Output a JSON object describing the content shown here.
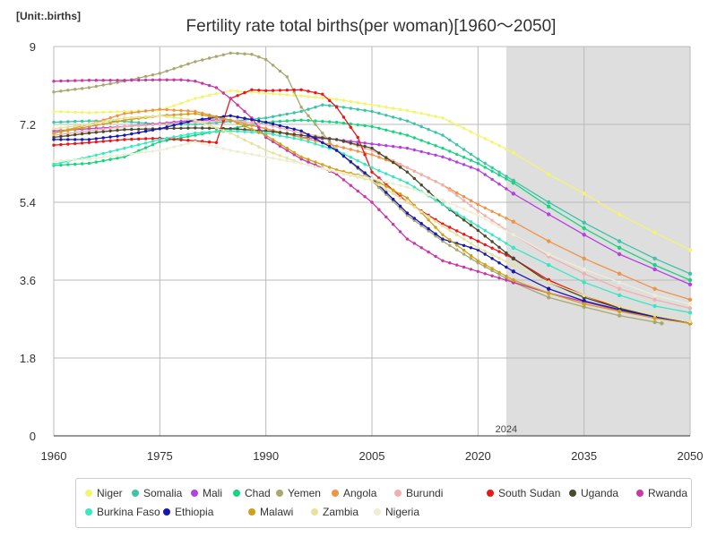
{
  "chart_data": {
    "type": "line",
    "title": "Fertility rate total births(per woman)[1960〜2050]",
    "unit_label": "[Unit:.births]",
    "xlim": [
      1960,
      2050
    ],
    "ylim": [
      0,
      9
    ],
    "x_ticks": [
      "1960",
      "1975",
      "1990",
      "2005",
      "2020",
      "2035",
      "2050"
    ],
    "y_ticks": [
      "0",
      "1.8",
      "3.6",
      "5.4",
      "7.2",
      "9"
    ],
    "forecast_start": 2024,
    "forecast_label": "2024",
    "grid": true,
    "legend_position": "bottom",
    "series": [
      {
        "name": "Niger",
        "color": "#f4f46e",
        "points": [
          [
            1960,
            7.5
          ],
          [
            1965,
            7.47
          ],
          [
            1970,
            7.5
          ],
          [
            1975,
            7.52
          ],
          [
            1980,
            7.8
          ],
          [
            1985,
            7.98
          ],
          [
            1990,
            7.92
          ],
          [
            1995,
            7.86
          ],
          [
            2000,
            7.78
          ],
          [
            2005,
            7.65
          ],
          [
            2010,
            7.52
          ],
          [
            2015,
            7.35
          ],
          [
            2020,
            6.95
          ],
          [
            2025,
            6.55
          ],
          [
            2030,
            6.05
          ],
          [
            2035,
            5.6
          ],
          [
            2040,
            5.12
          ],
          [
            2045,
            4.7
          ],
          [
            2050,
            4.3
          ]
        ]
      },
      {
        "name": "Somalia",
        "color": "#3cc4a8",
        "points": [
          [
            1960,
            7.25
          ],
          [
            1965,
            7.28
          ],
          [
            1970,
            7.27
          ],
          [
            1975,
            7.2
          ],
          [
            1980,
            7.2
          ],
          [
            1985,
            7.27
          ],
          [
            1990,
            7.35
          ],
          [
            1995,
            7.5
          ],
          [
            1998,
            7.65
          ],
          [
            2000,
            7.62
          ],
          [
            2005,
            7.5
          ],
          [
            2010,
            7.28
          ],
          [
            2015,
            6.95
          ],
          [
            2020,
            6.4
          ],
          [
            2025,
            5.9
          ],
          [
            2030,
            5.4
          ],
          [
            2035,
            4.93
          ],
          [
            2040,
            4.5
          ],
          [
            2045,
            4.1
          ],
          [
            2050,
            3.75
          ]
        ]
      },
      {
        "name": "Mali",
        "color": "#b540e0",
        "points": [
          [
            1960,
            7.05
          ],
          [
            1965,
            7.1
          ],
          [
            1970,
            7.15
          ],
          [
            1975,
            7.22
          ],
          [
            1980,
            7.3
          ],
          [
            1985,
            7.3
          ],
          [
            1990,
            7.1
          ],
          [
            1995,
            6.9
          ],
          [
            2000,
            6.85
          ],
          [
            2005,
            6.75
          ],
          [
            2010,
            6.65
          ],
          [
            2015,
            6.45
          ],
          [
            2020,
            6.15
          ],
          [
            2025,
            5.6
          ],
          [
            2030,
            5.12
          ],
          [
            2035,
            4.65
          ],
          [
            2040,
            4.2
          ],
          [
            2045,
            3.85
          ],
          [
            2050,
            3.5
          ]
        ]
      },
      {
        "name": "Chad",
        "color": "#18d480",
        "points": [
          [
            1960,
            6.25
          ],
          [
            1965,
            6.3
          ],
          [
            1970,
            6.45
          ],
          [
            1975,
            6.8
          ],
          [
            1980,
            6.95
          ],
          [
            1985,
            7.1
          ],
          [
            1990,
            7.25
          ],
          [
            1995,
            7.3
          ],
          [
            2000,
            7.25
          ],
          [
            2005,
            7.15
          ],
          [
            2010,
            6.95
          ],
          [
            2015,
            6.65
          ],
          [
            2020,
            6.3
          ],
          [
            2025,
            5.85
          ],
          [
            2030,
            5.3
          ],
          [
            2035,
            4.8
          ],
          [
            2040,
            4.35
          ],
          [
            2045,
            3.95
          ],
          [
            2050,
            3.6
          ]
        ]
      },
      {
        "name": "Yemen",
        "color": "#a8a870",
        "points": [
          [
            1960,
            7.95
          ],
          [
            1965,
            8.05
          ],
          [
            1970,
            8.2
          ],
          [
            1975,
            8.38
          ],
          [
            1980,
            8.65
          ],
          [
            1985,
            8.85
          ],
          [
            1988,
            8.82
          ],
          [
            1990,
            8.7
          ],
          [
            1993,
            8.3
          ],
          [
            1995,
            7.6
          ],
          [
            2000,
            6.6
          ],
          [
            2005,
            5.9
          ],
          [
            2010,
            5.1
          ],
          [
            2015,
            4.5
          ],
          [
            2020,
            4.0
          ],
          [
            2025,
            3.55
          ],
          [
            2030,
            3.2
          ],
          [
            2035,
            2.98
          ],
          [
            2040,
            2.78
          ],
          [
            2046,
            2.6
          ]
        ]
      },
      {
        "name": "Angola",
        "color": "#ee9444",
        "points": [
          [
            1960,
            7.0
          ],
          [
            1965,
            7.2
          ],
          [
            1970,
            7.45
          ],
          [
            1975,
            7.55
          ],
          [
            1980,
            7.5
          ],
          [
            1985,
            7.3
          ],
          [
            1990,
            7.1
          ],
          [
            1995,
            6.9
          ],
          [
            2000,
            6.7
          ],
          [
            2005,
            6.5
          ],
          [
            2010,
            6.2
          ],
          [
            2015,
            5.8
          ],
          [
            2020,
            5.35
          ],
          [
            2025,
            4.95
          ],
          [
            2030,
            4.5
          ],
          [
            2035,
            4.1
          ],
          [
            2040,
            3.75
          ],
          [
            2045,
            3.4
          ],
          [
            2050,
            3.15
          ]
        ]
      },
      {
        "name": "Burundi",
        "color": "#f0b0b0",
        "points": [
          [
            1960,
            6.95
          ],
          [
            1965,
            7.05
          ],
          [
            1970,
            7.15
          ],
          [
            1975,
            7.2
          ],
          [
            1980,
            7.25
          ],
          [
            1985,
            7.3
          ],
          [
            1990,
            7.2
          ],
          [
            1995,
            7.0
          ],
          [
            2000,
            6.85
          ],
          [
            2005,
            6.6
          ],
          [
            2010,
            6.2
          ],
          [
            2015,
            5.8
          ],
          [
            2020,
            5.2
          ],
          [
            2025,
            4.65
          ],
          [
            2030,
            4.15
          ],
          [
            2035,
            3.75
          ],
          [
            2040,
            3.4
          ],
          [
            2045,
            3.15
          ],
          [
            2050,
            2.95
          ]
        ]
      },
      {
        "name": "South Sudan",
        "color": "#e81818",
        "points": [
          [
            1960,
            6.72
          ],
          [
            1965,
            6.78
          ],
          [
            1970,
            6.85
          ],
          [
            1975,
            6.88
          ],
          [
            1980,
            6.82
          ],
          [
            1983,
            6.78
          ],
          [
            1985,
            7.8
          ],
          [
            1988,
            8.0
          ],
          [
            1990,
            7.98
          ],
          [
            1995,
            8.0
          ],
          [
            1998,
            7.9
          ],
          [
            2000,
            7.6
          ],
          [
            2003,
            6.9
          ],
          [
            2005,
            6.1
          ],
          [
            2010,
            5.4
          ],
          [
            2015,
            4.9
          ],
          [
            2020,
            4.5
          ],
          [
            2025,
            4.1
          ],
          [
            2030,
            3.6
          ],
          [
            2035,
            3.25
          ],
          [
            2040,
            2.95
          ],
          [
            2045,
            2.75
          ],
          [
            2050,
            2.6
          ]
        ]
      },
      {
        "name": "Uganda",
        "color": "#4a4a2c",
        "points": [
          [
            1960,
            6.9
          ],
          [
            1965,
            7.0
          ],
          [
            1970,
            7.08
          ],
          [
            1975,
            7.1
          ],
          [
            1980,
            7.12
          ],
          [
            1985,
            7.1
          ],
          [
            1990,
            7.05
          ],
          [
            1995,
            6.95
          ],
          [
            2000,
            6.85
          ],
          [
            2005,
            6.65
          ],
          [
            2010,
            6.1
          ],
          [
            2015,
            5.35
          ],
          [
            2020,
            4.75
          ],
          [
            2025,
            4.1
          ],
          [
            2030,
            3.55
          ],
          [
            2035,
            3.2
          ],
          [
            2040,
            2.95
          ],
          [
            2045,
            2.75
          ],
          [
            2050,
            2.6
          ]
        ]
      },
      {
        "name": "Rwanda",
        "color": "#c838a8",
        "points": [
          [
            1960,
            8.2
          ],
          [
            1965,
            8.22
          ],
          [
            1970,
            8.22
          ],
          [
            1975,
            8.23
          ],
          [
            1978,
            8.23
          ],
          [
            1980,
            8.2
          ],
          [
            1983,
            8.05
          ],
          [
            1985,
            7.8
          ],
          [
            1988,
            7.35
          ],
          [
            1990,
            6.9
          ],
          [
            1995,
            6.4
          ],
          [
            2000,
            6.05
          ],
          [
            2005,
            5.4
          ],
          [
            2010,
            4.55
          ],
          [
            2015,
            4.05
          ],
          [
            2020,
            3.8
          ],
          [
            2025,
            3.55
          ],
          [
            2030,
            3.3
          ],
          [
            2035,
            3.1
          ],
          [
            2040,
            2.9
          ],
          [
            2045,
            2.75
          ],
          [
            2050,
            2.6
          ]
        ]
      },
      {
        "name": "Burkina Faso",
        "color": "#38e8c0",
        "points": [
          [
            1960,
            6.28
          ],
          [
            1965,
            6.45
          ],
          [
            1970,
            6.65
          ],
          [
            1975,
            6.85
          ],
          [
            1980,
            7.0
          ],
          [
            1985,
            7.05
          ],
          [
            1990,
            7.0
          ],
          [
            1995,
            6.85
          ],
          [
            2000,
            6.6
          ],
          [
            2005,
            6.2
          ],
          [
            2010,
            5.85
          ],
          [
            2015,
            5.35
          ],
          [
            2020,
            4.85
          ],
          [
            2025,
            4.35
          ],
          [
            2030,
            3.95
          ],
          [
            2035,
            3.55
          ],
          [
            2040,
            3.25
          ],
          [
            2045,
            3.0
          ],
          [
            2050,
            2.85
          ]
        ]
      },
      {
        "name": "Ethiopia",
        "color": "#1818b0",
        "points": [
          [
            1960,
            6.85
          ],
          [
            1965,
            6.85
          ],
          [
            1970,
            6.95
          ],
          [
            1975,
            7.1
          ],
          [
            1980,
            7.3
          ],
          [
            1985,
            7.4
          ],
          [
            1990,
            7.25
          ],
          [
            1995,
            7.05
          ],
          [
            2000,
            6.6
          ],
          [
            2005,
            5.95
          ],
          [
            2010,
            5.15
          ],
          [
            2015,
            4.55
          ],
          [
            2020,
            4.3
          ],
          [
            2025,
            3.8
          ],
          [
            2030,
            3.4
          ],
          [
            2035,
            3.12
          ],
          [
            2040,
            2.92
          ],
          [
            2045,
            2.75
          ],
          [
            2050,
            2.6
          ]
        ]
      },
      {
        "name": "Malawi",
        "color": "#d0a018",
        "points": [
          [
            1960,
            7.0
          ],
          [
            1965,
            7.15
          ],
          [
            1970,
            7.3
          ],
          [
            1975,
            7.4
          ],
          [
            1980,
            7.45
          ],
          [
            1985,
            7.3
          ],
          [
            1990,
            6.95
          ],
          [
            1995,
            6.45
          ],
          [
            2000,
            6.15
          ],
          [
            2005,
            5.95
          ],
          [
            2010,
            5.5
          ],
          [
            2015,
            4.65
          ],
          [
            2020,
            4.05
          ],
          [
            2025,
            3.6
          ],
          [
            2030,
            3.3
          ],
          [
            2035,
            3.05
          ],
          [
            2040,
            2.88
          ],
          [
            2045,
            2.72
          ],
          [
            2050,
            2.6
          ]
        ]
      },
      {
        "name": "Zambia",
        "color": "#e4e4a0",
        "points": [
          [
            1960,
            7.1
          ],
          [
            1965,
            7.2
          ],
          [
            1970,
            7.35
          ],
          [
            1975,
            7.4
          ],
          [
            1980,
            7.3
          ],
          [
            1985,
            7.0
          ],
          [
            1990,
            6.6
          ],
          [
            1995,
            6.3
          ],
          [
            2000,
            6.1
          ],
          [
            2005,
            5.9
          ],
          [
            2010,
            5.4
          ],
          [
            2015,
            4.85
          ],
          [
            2020,
            4.35
          ],
          [
            2025,
            3.95
          ],
          [
            2030,
            3.55
          ],
          [
            2035,
            3.25
          ],
          [
            2040,
            3.0
          ],
          [
            2045,
            2.8
          ],
          [
            2050,
            2.65
          ]
        ]
      },
      {
        "name": "Nigeria",
        "color": "#eeeed4",
        "points": [
          [
            1960,
            6.35
          ],
          [
            1965,
            6.4
          ],
          [
            1970,
            6.5
          ],
          [
            1975,
            6.6
          ],
          [
            1980,
            6.8
          ],
          [
            1985,
            6.6
          ],
          [
            1990,
            6.45
          ],
          [
            1995,
            6.3
          ],
          [
            2000,
            6.1
          ],
          [
            2005,
            5.95
          ],
          [
            2010,
            5.75
          ],
          [
            2015,
            5.45
          ],
          [
            2020,
            5.1
          ],
          [
            2025,
            4.65
          ],
          [
            2030,
            4.2
          ],
          [
            2035,
            3.85
          ],
          [
            2040,
            3.55
          ],
          [
            2045,
            3.25
          ],
          [
            2050,
            3.05
          ]
        ]
      }
    ]
  }
}
